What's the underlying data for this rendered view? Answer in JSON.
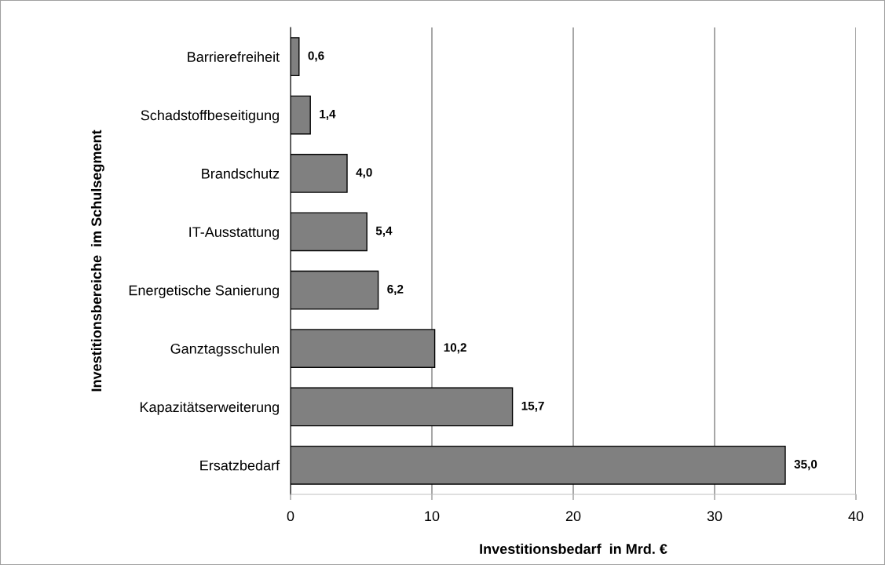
{
  "chart_data": {
    "type": "bar",
    "orientation": "horizontal",
    "categories": [
      "Barrierefreiheit",
      "Schadstoffbeseitigung",
      "Brandschutz",
      "IT-Ausstattung",
      "Energetische Sanierung",
      "Ganztagsschulen",
      "Kapazitätserweiterung",
      "Ersatzbedarf"
    ],
    "values": [
      0.6,
      1.4,
      4.0,
      5.4,
      6.2,
      10.2,
      15.7,
      35.0
    ],
    "value_labels": [
      "0,6",
      "1,4",
      "4,0",
      "5,4",
      "6,2",
      "10,2",
      "15,7",
      "35,0"
    ],
    "color": "#808080",
    "xlabel": "Investitionsbedarf  in Mrd. €",
    "ylabel": "Investitionsbereiche  im Schulsegment",
    "xlim": [
      0,
      40
    ],
    "xticks": [
      0,
      10,
      20,
      30,
      40
    ],
    "grid": "x",
    "legend": false
  }
}
